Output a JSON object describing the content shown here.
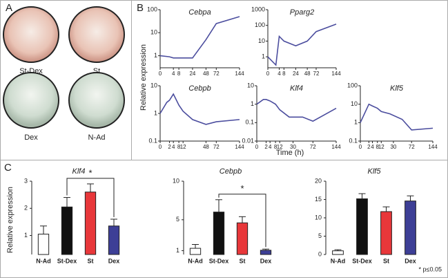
{
  "panel_labels": [
    "A",
    "B",
    "C"
  ],
  "dishes": [
    "St-Dex",
    "St",
    "Dex",
    "N-Ad"
  ],
  "panel_b": {
    "y_label": "Relative expression",
    "x_label": "Time (h)"
  },
  "panel_c": {
    "y_label": "Relative expression",
    "footnote": "* p≤0.05"
  },
  "chart_data": [
    {
      "type": "line",
      "title": "Cebpa",
      "x": [
        0,
        2,
        4,
        8,
        24,
        48,
        72,
        144
      ],
      "x_scale": "sqrt",
      "log_y": true,
      "series": [
        {
          "color": "#4b4d9e",
          "values": [
            1,
            0.9,
            0.8,
            0.8,
            0.8,
            5,
            25,
            50
          ]
        }
      ],
      "xlim": [
        0,
        144
      ],
      "xticks": [
        0,
        4,
        8,
        24,
        48,
        72,
        144
      ],
      "ylim": [
        0.3,
        100
      ],
      "yticks": [
        1,
        10,
        100
      ]
    },
    {
      "type": "line",
      "title": "Pparg2",
      "x": [
        0,
        2,
        4,
        8,
        24,
        48,
        72,
        144
      ],
      "x_scale": "sqrt",
      "log_y": true,
      "series": [
        {
          "color": "#4b4d9e",
          "values": [
            1,
            0.3,
            20,
            10,
            5,
            10,
            40,
            120
          ]
        }
      ],
      "xlim": [
        0,
        144
      ],
      "xticks": [
        0,
        4,
        8,
        24,
        48,
        72,
        144
      ],
      "ylim": [
        0.2,
        1000
      ],
      "yticks": [
        1,
        10,
        100,
        1000
      ]
    },
    {
      "type": "line",
      "title": "Cebpb",
      "x": [
        0,
        1,
        2,
        4,
        8,
        12,
        24,
        48,
        72,
        144
      ],
      "x_scale": "sqrt",
      "log_y": true,
      "series": [
        {
          "color": "#4b4d9e",
          "values": [
            1,
            2.5,
            3,
            5,
            2,
            1.2,
            0.6,
            0.4,
            0.5,
            0.6
          ]
        }
      ],
      "xlim": [
        0,
        144
      ],
      "xticks": [
        0,
        2,
        4,
        8,
        12,
        48,
        72,
        144
      ],
      "ylim": [
        0.1,
        10
      ],
      "yticks": [
        0.1,
        1,
        10
      ]
    },
    {
      "type": "line",
      "title": "Klf4",
      "x": [
        0,
        1,
        2,
        4,
        8,
        12,
        24,
        48,
        72,
        144
      ],
      "x_scale": "sqrt",
      "log_y": true,
      "series": [
        {
          "color": "#4b4d9e",
          "values": [
            1,
            1.8,
            1.8,
            1.5,
            1,
            0.5,
            0.2,
            0.2,
            0.12,
            0.6
          ]
        }
      ],
      "xlim": [
        0,
        144
      ],
      "xticks": [
        0,
        2,
        4,
        8,
        12,
        30,
        72,
        144
      ],
      "ylim": [
        0.01,
        10
      ],
      "yticks": [
        0.01,
        0.1,
        1,
        10
      ]
    },
    {
      "type": "line",
      "title": "Klf5",
      "x": [
        0,
        2,
        4,
        8,
        12,
        24,
        48,
        72,
        144
      ],
      "x_scale": "sqrt",
      "log_y": true,
      "series": [
        {
          "color": "#4b4d9e",
          "values": [
            1,
            10,
            8,
            6,
            4,
            3,
            1.5,
            0.4,
            0.5
          ]
        }
      ],
      "xlim": [
        0,
        144
      ],
      "xticks": [
        0,
        2,
        4,
        8,
        12,
        30,
        72,
        144
      ],
      "ylim": [
        0.1,
        100
      ],
      "yticks": [
        0.1,
        1,
        10,
        100
      ]
    },
    {
      "type": "bar",
      "title": "Klf4",
      "categories": [
        "N-Ad",
        "St-Dex",
        "St",
        "Dex"
      ],
      "values": [
        1.05,
        2.05,
        2.6,
        1.35
      ],
      "errors": [
        0.3,
        0.35,
        0.3,
        0.25
      ],
      "colors": [
        "#ffffff",
        "#111111",
        "#e8373a",
        "#3d3f96"
      ],
      "ylim": [
        0.3,
        3
      ],
      "yticks": [
        1,
        2,
        3
      ],
      "annotation": "*"
    },
    {
      "type": "bar",
      "title": "Cebpb",
      "categories": [
        "N-Ad",
        "St-Dex",
        "St",
        "Dex"
      ],
      "values": [
        1.3,
        6,
        4.6,
        1.05
      ],
      "errors": [
        0.5,
        1.6,
        0.8,
        0.15
      ],
      "colors": [
        "#ffffff",
        "#111111",
        "#e8373a",
        "#3d3f96"
      ],
      "ylim": [
        0.5,
        10
      ],
      "yticks": [
        1,
        5,
        10
      ],
      "annotation": "*"
    },
    {
      "type": "bar",
      "title": "Klf5",
      "categories": [
        "N-Ad",
        "St-Dex",
        "St",
        "Dex"
      ],
      "values": [
        1,
        15.2,
        11.7,
        14.6
      ],
      "errors": [
        0.3,
        1.4,
        1.3,
        1.4
      ],
      "colors": [
        "#ffffff",
        "#111111",
        "#e8373a",
        "#3d3f96"
      ],
      "ylim": [
        0,
        20
      ],
      "yticks": [
        0,
        5,
        10,
        15,
        20
      ]
    }
  ]
}
